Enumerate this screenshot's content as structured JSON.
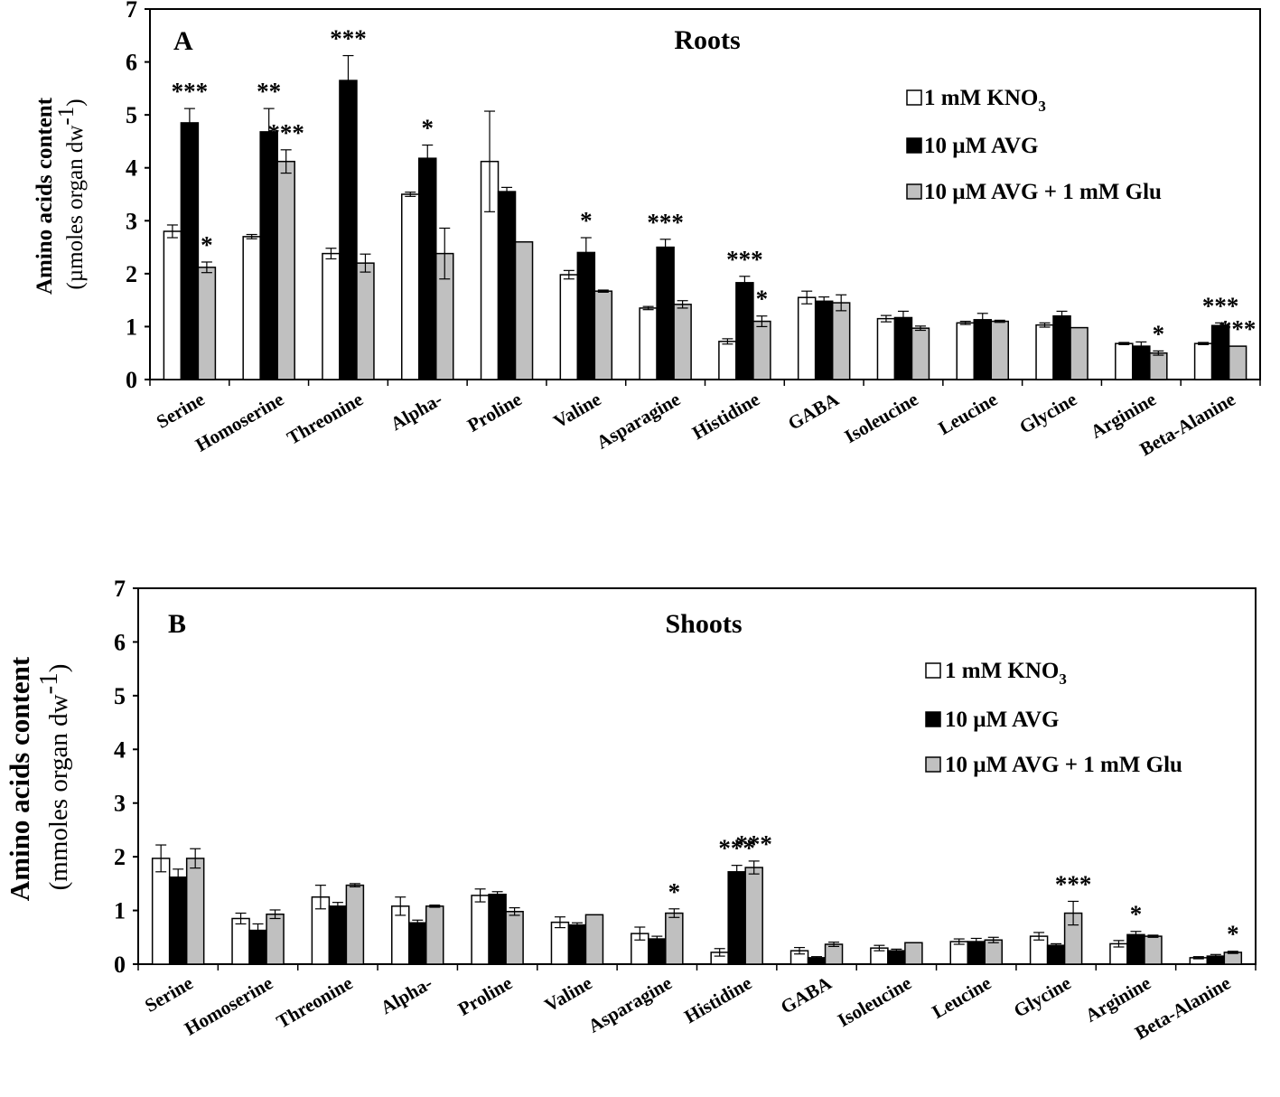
{
  "chart_data": [
    {
      "type": "bar",
      "panel_label": "A",
      "title": "Roots",
      "ylabel_line1": "Amino acids content",
      "ylabel_line2_pre": "(µmoles organ dw",
      "ylabel_sup": "-1",
      "ylabel_line2_post": ")",
      "ylim": [
        0,
        7
      ],
      "yticks": [
        "0",
        "1",
        "2",
        "3",
        "4",
        "5",
        "6",
        "7"
      ],
      "categories": [
        "Serine",
        "Homoserine",
        "Threonine",
        "Alpha-",
        "Proline",
        "Valine",
        "Asparagine",
        "Histidine",
        "GABA",
        "Isoleucine",
        "Leucine",
        "Glycine",
        "Arginine",
        "Beta-Alanine"
      ],
      "legend": {
        "position": "top-right",
        "items": [
          {
            "pre": "1 mM KNO",
            "sub": "3"
          },
          {
            "pre": "10 µM AVG",
            "sub": ""
          },
          {
            "pre": "10 µM AVG + 1 mM Glu",
            "sub": ""
          }
        ]
      },
      "series": [
        {
          "name": "1 mM KNO3",
          "color": "#ffffff",
          "values": [
            2.8,
            2.7,
            2.38,
            3.5,
            4.12,
            1.98,
            1.35,
            0.72,
            1.55,
            1.15,
            1.07,
            1.03,
            0.68,
            0.68
          ],
          "errors": [
            0.12,
            0.04,
            0.1,
            0.04,
            0.95,
            0.08,
            0.03,
            0.05,
            0.12,
            0.06,
            0.03,
            0.04,
            0.02,
            0.02
          ],
          "sig": [
            "",
            "",
            "",
            "",
            "",
            "",
            "",
            "",
            "",
            "",
            "",
            "",
            "",
            ""
          ]
        },
        {
          "name": "10 µM AVG",
          "color": "#000000",
          "values": [
            4.85,
            4.68,
            5.65,
            4.18,
            3.55,
            2.4,
            2.5,
            1.83,
            1.48,
            1.17,
            1.13,
            1.2,
            0.63,
            1.02
          ],
          "errors": [
            0.27,
            0.44,
            0.47,
            0.25,
            0.08,
            0.28,
            0.15,
            0.12,
            0.08,
            0.12,
            0.12,
            0.09,
            0.08,
            0.05
          ],
          "sig": [
            "***",
            "**",
            "***",
            "*",
            "",
            "*",
            "***",
            "***",
            "",
            "",
            "",
            "",
            "",
            "***"
          ]
        },
        {
          "name": "10 µM AVG + 1 mM Glu",
          "color": "#c0c0c0",
          "values": [
            2.12,
            4.12,
            2.2,
            2.38,
            2.6,
            1.67,
            1.42,
            1.1,
            1.45,
            0.97,
            1.1,
            0.98,
            0.5,
            0.63
          ],
          "errors": [
            0.1,
            0.22,
            0.17,
            0.48,
            0.0,
            0.02,
            0.07,
            0.1,
            0.15,
            0.04,
            0.02,
            0.0,
            0.04,
            0.0
          ],
          "sig": [
            "*",
            "***",
            "",
            "",
            "",
            "",
            "",
            "*",
            "",
            "",
            "",
            "",
            "*",
            "***"
          ]
        }
      ]
    },
    {
      "type": "bar",
      "panel_label": "B",
      "title": "Shoots",
      "ylabel_line1": "Amino acids content",
      "ylabel_line2_pre": "(mmoles organ dw",
      "ylabel_sup": "-1",
      "ylabel_line2_post": ")",
      "ylim": [
        0,
        7
      ],
      "yticks": [
        "0",
        "1",
        "2",
        "3",
        "4",
        "5",
        "6",
        "7"
      ],
      "categories": [
        "Serine",
        "Homoserine",
        "Threonine",
        "Alpha-",
        "Proline",
        "Valine",
        "Asparagine",
        "Histidine",
        "GABA",
        "Isoleucine",
        "Leucine",
        "Glycine",
        "Arginine",
        "Beta-Alanine"
      ],
      "legend": {
        "position": "top-right",
        "items": [
          {
            "pre": "1 mM KNO",
            "sub": "3"
          },
          {
            "pre": "10 µM AVG",
            "sub": ""
          },
          {
            "pre": "10 µM AVG + 1 mM Glu",
            "sub": ""
          }
        ]
      },
      "series": [
        {
          "name": "1 mM KNO3",
          "color": "#ffffff",
          "values": [
            1.97,
            0.85,
            1.25,
            1.08,
            1.28,
            0.78,
            0.57,
            0.22,
            0.25,
            0.3,
            0.42,
            0.52,
            0.38,
            0.12
          ],
          "errors": [
            0.25,
            0.1,
            0.22,
            0.17,
            0.12,
            0.1,
            0.12,
            0.07,
            0.06,
            0.05,
            0.05,
            0.07,
            0.06,
            0.02
          ],
          "sig": [
            "",
            "",
            "",
            "",
            "",
            "",
            "",
            "",
            "",
            "",
            "",
            "",
            "",
            ""
          ]
        },
        {
          "name": "10 µM AVG",
          "color": "#000000",
          "values": [
            1.62,
            0.63,
            1.08,
            0.77,
            1.3,
            0.73,
            0.47,
            1.72,
            0.12,
            0.25,
            0.42,
            0.35,
            0.55,
            0.15
          ],
          "errors": [
            0.15,
            0.12,
            0.07,
            0.05,
            0.05,
            0.04,
            0.05,
            0.12,
            0.02,
            0.03,
            0.06,
            0.03,
            0.06,
            0.03
          ],
          "sig": [
            "",
            "",
            "",
            "",
            "",
            "",
            "",
            "***",
            "",
            "",
            "",
            "",
            "*",
            ""
          ]
        },
        {
          "name": "10 µM AVG + 1 mM Glu",
          "color": "#c0c0c0",
          "values": [
            1.97,
            0.93,
            1.47,
            1.08,
            0.98,
            0.92,
            0.95,
            1.8,
            0.37,
            0.4,
            0.45,
            0.95,
            0.52,
            0.22
          ],
          "errors": [
            0.18,
            0.08,
            0.03,
            0.02,
            0.07,
            0.0,
            0.08,
            0.12,
            0.04,
            0.0,
            0.05,
            0.22,
            0.02,
            0.02
          ],
          "sig": [
            "",
            "",
            "",
            "",
            "",
            "",
            "*",
            "***",
            "",
            "",
            "",
            "***",
            "",
            "*"
          ]
        }
      ]
    }
  ]
}
